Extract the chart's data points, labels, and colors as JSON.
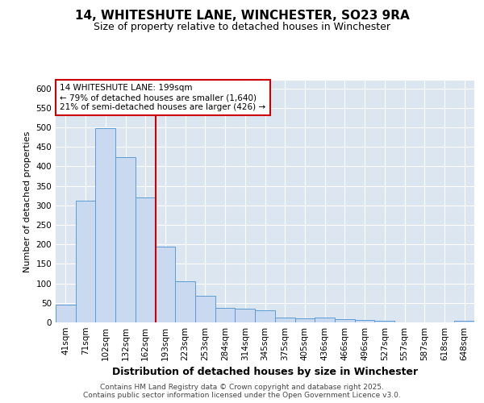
{
  "title": "14, WHITESHUTE LANE, WINCHESTER, SO23 9RA",
  "subtitle": "Size of property relative to detached houses in Winchester",
  "xlabel": "Distribution of detached houses by size in Winchester",
  "ylabel": "Number of detached properties",
  "categories": [
    "41sqm",
    "71sqm",
    "102sqm",
    "132sqm",
    "162sqm",
    "193sqm",
    "223sqm",
    "253sqm",
    "284sqm",
    "314sqm",
    "345sqm",
    "375sqm",
    "405sqm",
    "436sqm",
    "466sqm",
    "496sqm",
    "527sqm",
    "557sqm",
    "587sqm",
    "618sqm",
    "648sqm"
  ],
  "values": [
    45,
    313,
    498,
    423,
    320,
    195,
    105,
    68,
    38,
    35,
    30,
    13,
    11,
    13,
    9,
    6,
    4,
    1,
    0,
    1,
    5
  ],
  "bar_color": "#c9d9f0",
  "bar_edge_color": "#5b9bd5",
  "background_color": "#dce6f1",
  "gridcolor": "#ffffff",
  "vline_x": 4.5,
  "vline_color": "#cc0000",
  "annotation_line1": "14 WHITESHUTE LANE: 199sqm",
  "annotation_line2": "← 79% of detached houses are smaller (1,640)",
  "annotation_line3": "21% of semi-detached houses are larger (426) →",
  "annotation_box_color": "#ffffff",
  "annotation_box_edge": "#cc0000",
  "footer_text": "Contains HM Land Registry data © Crown copyright and database right 2025.\nContains public sector information licensed under the Open Government Licence v3.0.",
  "ylim": [
    0,
    620
  ],
  "yticks": [
    0,
    50,
    100,
    150,
    200,
    250,
    300,
    350,
    400,
    450,
    500,
    550,
    600
  ],
  "title_fontsize": 11,
  "subtitle_fontsize": 9,
  "xlabel_fontsize": 9,
  "ylabel_fontsize": 8,
  "tick_fontsize": 7.5,
  "annotation_fontsize": 7.5,
  "footer_fontsize": 6.5
}
